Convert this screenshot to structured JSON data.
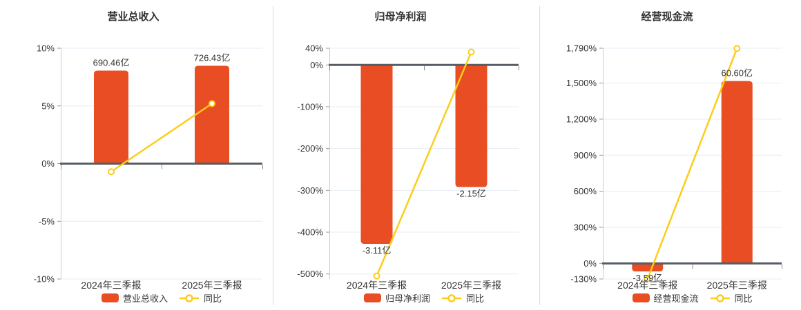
{
  "panel": {
    "background": "#ffffff"
  },
  "colors": {
    "bar": "#e94d23",
    "line": "#fccd19",
    "marker_fill": "#ffffff",
    "zero_axis": "#565d64",
    "gridline": "#e7ecf5",
    "axis_line": "#cccccc",
    "tick": "#999999",
    "text": "#333333",
    "divider": "#d9d9d9"
  },
  "chart_data": [
    {
      "type": "bar",
      "title": "营业总收入",
      "categories": [
        "2024年三季报",
        "2025年三季报"
      ],
      "series": [
        {
          "name": "营业总收入",
          "kind": "bar",
          "unit": "亿",
          "values": [
            690.46,
            726.43
          ],
          "labels": [
            "690.46亿",
            "726.43亿"
          ],
          "display_pct": [
            8.06,
            8.48
          ]
        },
        {
          "name": "同比",
          "kind": "line",
          "unit": "%",
          "values": [
            -0.7,
            5.2
          ]
        }
      ],
      "y_axis": {
        "min": -10,
        "max": 10,
        "tick_values": [
          10,
          5,
          0,
          -5,
          -10
        ],
        "tick_labels": [
          "10%",
          "5%",
          "0%",
          "-5%",
          "-10%"
        ]
      },
      "legend": [
        "营业总收入",
        "同比"
      ],
      "grid": true,
      "legend_position": "bottom"
    },
    {
      "type": "bar",
      "title": "归母净利润",
      "categories": [
        "2024年三季报",
        "2025年三季报"
      ],
      "series": [
        {
          "name": "归母净利润",
          "kind": "bar",
          "unit": "亿",
          "values": [
            -3.11,
            -2.15
          ],
          "labels": [
            "-3.11亿",
            "-2.15亿"
          ],
          "display_pct": [
            -428,
            -292
          ]
        },
        {
          "name": "同比",
          "kind": "line",
          "unit": "%",
          "values": [
            -505,
            30.9
          ]
        }
      ],
      "y_axis": {
        "min": -512,
        "max": 40,
        "tick_values": [
          40,
          0,
          -100,
          -200,
          -300,
          -400,
          -500
        ],
        "tick_labels": [
          "40%",
          "0%",
          "-100%",
          "-200%",
          "-300%",
          "-400%",
          "-500%"
        ]
      },
      "legend": [
        "归母净利润",
        "同比"
      ],
      "grid": true,
      "legend_position": "bottom"
    },
    {
      "type": "bar",
      "title": "经营现金流",
      "categories": [
        "2024年三季报",
        "2025年三季报"
      ],
      "series": [
        {
          "name": "经营现金流",
          "kind": "bar",
          "unit": "亿",
          "values": [
            -3.59,
            60.6
          ],
          "labels": [
            "-3.59亿",
            "60.60亿"
          ],
          "display_pct": [
            -67,
            1517
          ]
        },
        {
          "name": "同比",
          "kind": "line",
          "unit": "%",
          "values": [
            -130,
            1788
          ]
        }
      ],
      "y_axis": {
        "min": -130,
        "max": 1790,
        "tick_values": [
          1790,
          1500,
          1200,
          900,
          600,
          300,
          0,
          -130
        ],
        "tick_labels": [
          "1,790%",
          "1,500%",
          "1,200%",
          "900%",
          "600%",
          "300%",
          "0%",
          "-130%"
        ]
      },
      "legend": [
        "经营现金流",
        "同比"
      ],
      "grid": true,
      "legend_position": "bottom"
    }
  ]
}
